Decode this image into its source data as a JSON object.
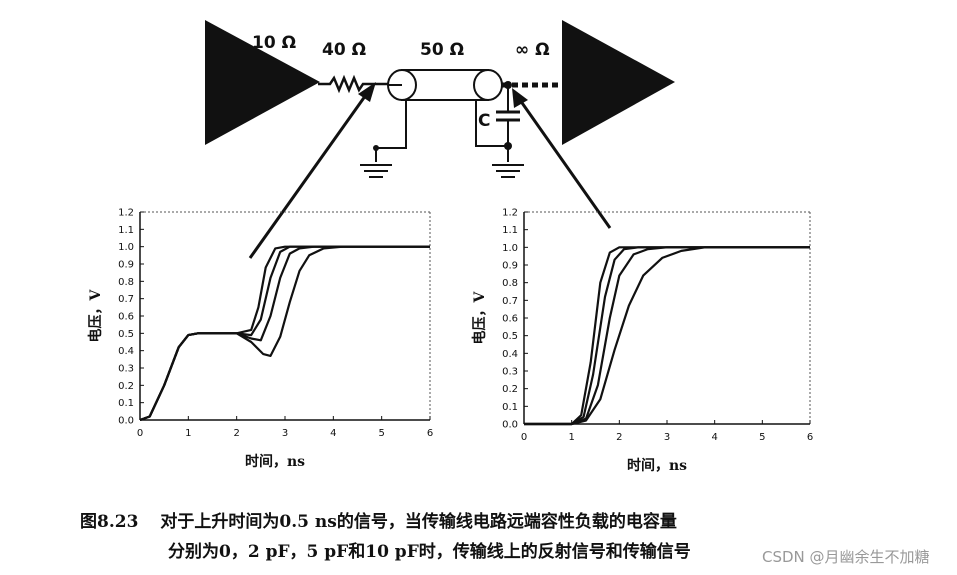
{
  "circuit": {
    "driver_resistance": "10 Ω",
    "series_resistor": "40 Ω",
    "line_impedance": "50 Ω",
    "receiver_impedance": "∞ Ω",
    "capacitor": "C"
  },
  "chart_data": [
    {
      "type": "line",
      "ylabel": "电压，V",
      "xlabel": "时间，ns",
      "xlim": [
        0,
        6
      ],
      "ylim": [
        0,
        1.2
      ],
      "x_ticks": [
        "0",
        "1",
        "2",
        "3",
        "4",
        "5",
        "6"
      ],
      "y_ticks": [
        "0.0",
        "0.1",
        "0.2",
        "0.3",
        "0.4",
        "0.5",
        "0.6",
        "0.7",
        "0.8",
        "0.9",
        "1.0",
        "1.1",
        "1.2"
      ],
      "series": [
        {
          "x": [
            0,
            0.2,
            0.5,
            0.8,
            1.0,
            1.2,
            2.0,
            2.3,
            2.45,
            2.6,
            2.8,
            3.0,
            3.5,
            6.0
          ],
          "values": [
            0,
            0.02,
            0.2,
            0.42,
            0.49,
            0.5,
            0.5,
            0.52,
            0.65,
            0.88,
            0.99,
            1.0,
            1.0,
            1.0
          ]
        },
        {
          "x": [
            0,
            0.2,
            0.5,
            0.8,
            1.0,
            1.2,
            2.0,
            2.3,
            2.5,
            2.7,
            2.9,
            3.1,
            3.5,
            6.0
          ],
          "values": [
            0,
            0.02,
            0.2,
            0.42,
            0.49,
            0.5,
            0.5,
            0.49,
            0.58,
            0.82,
            0.97,
            1.0,
            1.0,
            1.0
          ]
        },
        {
          "x": [
            0,
            0.2,
            0.5,
            0.8,
            1.0,
            1.2,
            2.0,
            2.3,
            2.5,
            2.7,
            2.9,
            3.1,
            3.3,
            3.6,
            6.0
          ],
          "values": [
            0,
            0.02,
            0.2,
            0.42,
            0.49,
            0.5,
            0.5,
            0.47,
            0.46,
            0.6,
            0.82,
            0.96,
            0.99,
            1.0,
            1.0
          ]
        },
        {
          "x": [
            0,
            0.2,
            0.5,
            0.8,
            1.0,
            1.2,
            2.0,
            2.3,
            2.55,
            2.7,
            2.9,
            3.1,
            3.3,
            3.5,
            3.8,
            4.2,
            6.0
          ],
          "values": [
            0,
            0.02,
            0.2,
            0.42,
            0.49,
            0.5,
            0.5,
            0.45,
            0.38,
            0.37,
            0.48,
            0.68,
            0.86,
            0.95,
            0.99,
            1.0,
            1.0
          ]
        }
      ]
    },
    {
      "type": "line",
      "ylabel": "电压，V",
      "xlabel": "时间，ns",
      "xlim": [
        0,
        6
      ],
      "ylim": [
        0,
        1.2
      ],
      "x_ticks": [
        "0",
        "1",
        "2",
        "3",
        "4",
        "5",
        "6"
      ],
      "y_ticks": [
        "0.0",
        "0.1",
        "0.2",
        "0.3",
        "0.4",
        "0.5",
        "0.6",
        "0.7",
        "0.8",
        "0.9",
        "1.0",
        "1.1",
        "1.2"
      ],
      "series": [
        {
          "x": [
            0,
            1.0,
            1.2,
            1.4,
            1.6,
            1.8,
            2.0,
            2.3,
            6.0
          ],
          "values": [
            0,
            0,
            0.05,
            0.35,
            0.8,
            0.97,
            1.0,
            1.0,
            1.0
          ]
        },
        {
          "x": [
            0,
            1.0,
            1.25,
            1.45,
            1.7,
            1.9,
            2.1,
            2.4,
            6.0
          ],
          "values": [
            0,
            0,
            0.04,
            0.28,
            0.72,
            0.93,
            0.99,
            1.0,
            1.0
          ]
        },
        {
          "x": [
            0,
            1.0,
            1.3,
            1.55,
            1.8,
            2.0,
            2.3,
            2.6,
            3.0,
            6.0
          ],
          "values": [
            0,
            0,
            0.03,
            0.22,
            0.6,
            0.84,
            0.96,
            0.99,
            1.0,
            1.0
          ]
        },
        {
          "x": [
            0,
            1.0,
            1.3,
            1.6,
            1.9,
            2.2,
            2.5,
            2.9,
            3.3,
            3.8,
            6.0
          ],
          "values": [
            0,
            0,
            0.02,
            0.14,
            0.42,
            0.67,
            0.84,
            0.94,
            0.98,
            1.0,
            1.0
          ]
        }
      ]
    }
  ],
  "caption": {
    "figure_number": "图8.23",
    "line1": "对于上升时间为0.5 ns的信号，当传输线电路远端容性负载的电容量",
    "line2": "分别为0，2 pF，5 pF和10 pF时，传输线上的反射信号和传输信号"
  },
  "watermark": "CSDN @月幽余生不加糖"
}
